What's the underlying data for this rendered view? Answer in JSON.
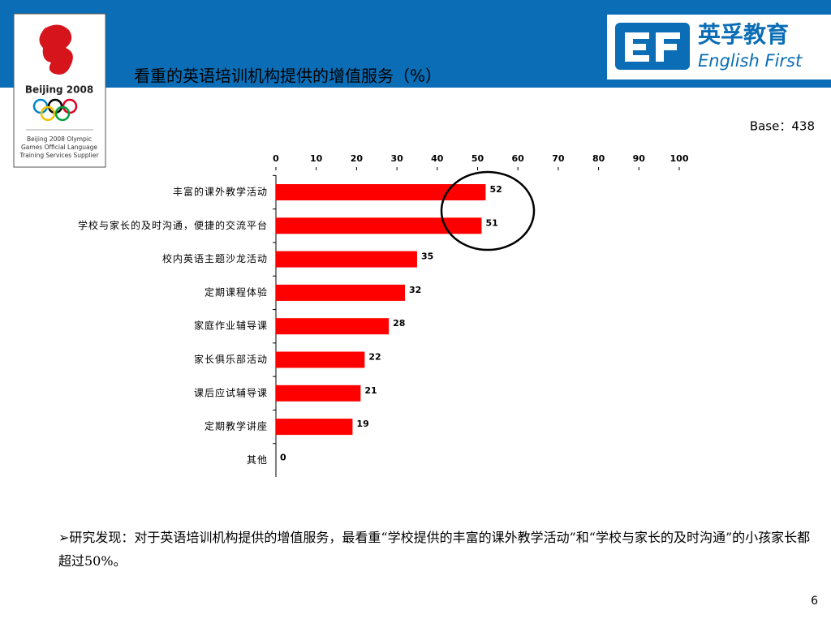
{
  "header": {
    "title": "看重的英语培训机构提供的增值服务（%）",
    "brand_cn": "英孚教育",
    "brand_en": "English First",
    "olympic_logo": "Beijing 2008",
    "olympic_caption": [
      "Beijing 2008 Olympic",
      "Games Official Language",
      "Training Services Supplier"
    ],
    "base": "Base：438"
  },
  "chart_data": {
    "type": "bar",
    "orientation": "horizontal",
    "categories": [
      "丰富的课外教学活动",
      "学校与家长的及时沟通，便捷的交流平台",
      "校内英语主题沙龙活动",
      "定期课程体验",
      "家庭作业辅导课",
      "家长俱乐部活动",
      "课后应试辅导课",
      "定期教学讲座",
      "其他"
    ],
    "values": [
      52,
      51,
      35,
      32,
      28,
      22,
      21,
      19,
      0
    ],
    "color": "#ff0000",
    "xlim": [
      0,
      100
    ],
    "xticks": [
      0,
      10,
      20,
      30,
      40,
      50,
      60,
      70,
      80,
      90,
      100
    ]
  },
  "footer": {
    "note": "➢研究发现：对于英语培训机构提供的增值服务，最看重“学校提供的丰富的课外教学活动”和“学校与家长的及时沟通”的小孩家长都超过50%。",
    "page_number": "6"
  }
}
